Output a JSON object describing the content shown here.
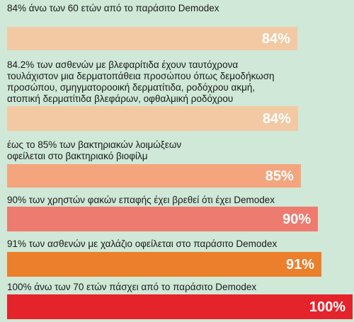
{
  "chart_data": {
    "type": "bar",
    "orientation": "horizontal",
    "xlim": [
      0,
      100
    ],
    "grid": false,
    "legend": "none",
    "series": [
      {
        "label": "84% άνω των 60 ετών από το παράσιτο Demodex",
        "value": 84,
        "value_label": "84%",
        "color": "#f2c9a3"
      },
      {
        "label": "84.2% των ασθενών με βλεφαρίτιδα έχουν ταυτόχρονα\nτουλάχιστον μια δερματοπάθεια προσώπου όπως δεμοδήκωση\nπροσώπου, σμηγματοροοική δερματίτιδα, ροδόχρου ακμή,\nατοπική δερματίτιδα βλεφάρων, οφθαλμική ροδόχρου",
        "value": 84.2,
        "value_label": "84%",
        "color": "#f2c9a3"
      },
      {
        "label": "έως το 85% των βακτηριακών λοιμώξεων\nοφείλεται στο βακτηριακό βιοφίλμ",
        "value": 85,
        "value_label": "85%",
        "color": "#f4a57e"
      },
      {
        "label": "90% των χρηστών φακών επαφής έχει βρεθεί ότι έχει Demodex",
        "value": 90,
        "value_label": "90%",
        "color": "#ee7b6f"
      },
      {
        "label": "91% των ασθενών με χαλάζιο οφείλεται στο παράσιτο Demodex",
        "value": 91,
        "value_label": "91%",
        "color": "#ec7f2b"
      },
      {
        "label": "100% άνω των 70 ετών πάσχει από το παράσιτο Demodex",
        "value": 100,
        "value_label": "100%",
        "color": "#e4232b"
      }
    ]
  }
}
